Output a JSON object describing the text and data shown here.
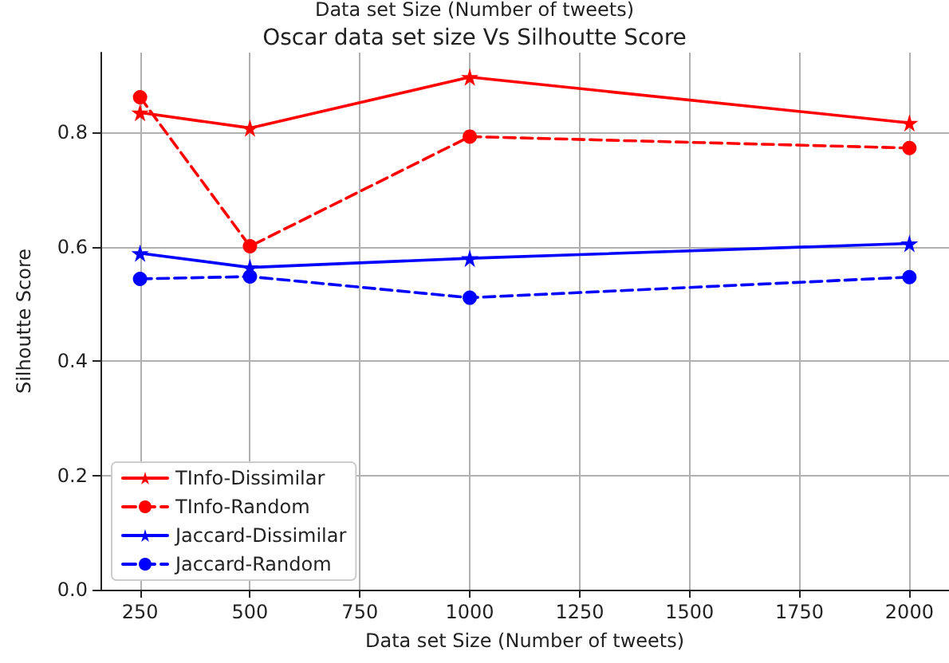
{
  "chart_data": {
    "type": "line",
    "title": "Oscar data set size Vs Silhoutte Score",
    "annotations": [
      "Data set Size (Number of tweets)"
    ],
    "xlabel": "Data set Size (Number of tweets)",
    "ylabel": "Silhoutte Score",
    "x": [
      250,
      500,
      1000,
      2000
    ],
    "xlim": [
      160,
      2090
    ],
    "xticks": [
      250,
      500,
      750,
      1000,
      1250,
      1500,
      1750,
      2000
    ],
    "ylim": [
      0,
      0.94
    ],
    "yticks": [
      {
        "value": 0,
        "label": "0.0"
      },
      0.2,
      0.4,
      0.6,
      0.8
    ],
    "grid": true,
    "legend": "bottom left",
    "series": [
      {
        "name": "TInfo-Dissimilar",
        "color": "#ff0000",
        "marker": "star",
        "line_style": "solid",
        "values": [
          0.835,
          0.808,
          0.897,
          0.817
        ]
      },
      {
        "name": "TInfo-Random",
        "color": "#ff0000",
        "marker": "circle",
        "line_style": "dashed",
        "values": [
          0.862,
          0.601,
          0.793,
          0.773
        ]
      },
      {
        "name": "Jaccard-Dissimilar",
        "color": "#0000ff",
        "marker": "star",
        "line_style": "solid",
        "values": [
          0.589,
          0.564,
          0.58,
          0.606
        ]
      },
      {
        "name": "Jaccard-Random",
        "color": "#0000ff",
        "marker": "circle",
        "line_style": "dashed",
        "values": [
          0.544,
          0.548,
          0.511,
          0.547
        ]
      }
    ]
  }
}
